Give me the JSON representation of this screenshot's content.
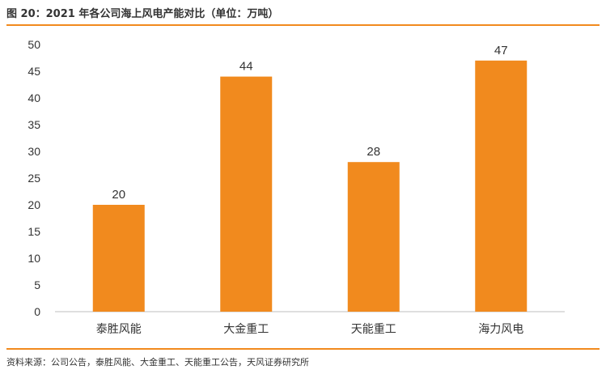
{
  "figure": {
    "title": "图 20：2021 年各公司海上风电产能对比（单位：万吨）",
    "source": "资料来源：公司公告，泰胜风能、大金重工、天能重工公告，天风证券研究所",
    "accent_color": "#F18A1E"
  },
  "chart_data": {
    "type": "bar",
    "title": "图 20：2021 年各公司海上风电产能对比（单位：万吨）",
    "categories": [
      "泰胜风能",
      "大金重工",
      "天能重工",
      "海力风电"
    ],
    "values": [
      20,
      44,
      28,
      47
    ],
    "ylim": [
      0,
      50
    ],
    "yticks": [
      0,
      5,
      10,
      15,
      20,
      25,
      30,
      35,
      40,
      45,
      50
    ],
    "xlabel": "",
    "ylabel": "",
    "grid": false,
    "bar_color": "#F18A1E"
  }
}
